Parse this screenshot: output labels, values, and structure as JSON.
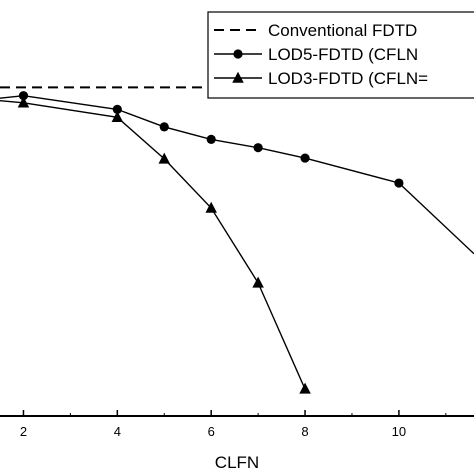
{
  "chart_data": {
    "type": "line",
    "xlabel": "CLFN",
    "ylabel": "",
    "xlim": [
      1.5,
      11.6
    ],
    "ylim": [
      0.0,
      1.0
    ],
    "x_ticks": [
      2,
      4,
      6,
      8,
      10
    ],
    "x_tick_labels": [
      "2",
      "4",
      "6",
      "8",
      "10"
    ],
    "legend_position": "top-right",
    "series": [
      {
        "name": "Conventional FDTD",
        "style": "dashed",
        "marker": "none",
        "color": "#000000",
        "x": [
          1.5,
          11.6
        ],
        "y": [
          0.79,
          0.79
        ]
      },
      {
        "name": "LOD5-FDTD (CFLN",
        "style": "solid",
        "marker": "circle",
        "color": "#000000",
        "x": [
          1.5,
          2,
          4,
          5,
          6,
          7,
          8,
          10,
          11.6
        ],
        "y": [
          0.764,
          0.77,
          0.737,
          0.695,
          0.665,
          0.645,
          0.62,
          0.56,
          0.39
        ]
      },
      {
        "name": "LOD3-FDTD (CFLN=",
        "style": "solid",
        "marker": "triangle",
        "color": "#000000",
        "x": [
          1.5,
          2,
          4,
          5,
          6,
          7,
          8
        ],
        "y": [
          0.758,
          0.753,
          0.718,
          0.618,
          0.5,
          0.32,
          0.065
        ]
      }
    ]
  }
}
